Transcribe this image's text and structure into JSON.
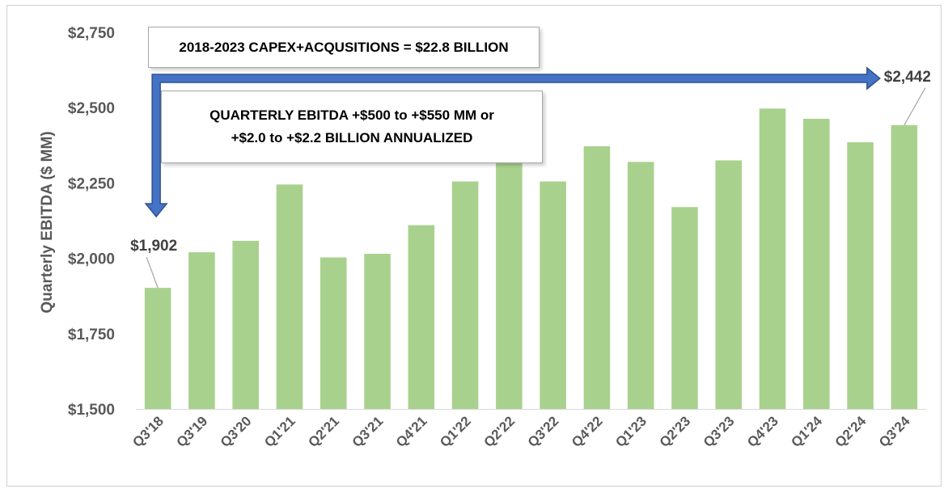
{
  "chart_data": {
    "type": "bar",
    "title": "",
    "xlabel": "",
    "ylabel": "Quarterly  EBITDA ($ MM)",
    "ylim": [
      1500,
      2750
    ],
    "yticks": [
      "$1,500",
      "$1,750",
      "$2,000",
      "$2,250",
      "$2,500",
      "$2,750"
    ],
    "ytick_values": [
      1500,
      1750,
      2000,
      2250,
      2500,
      2750
    ],
    "categories": [
      "Q3'18",
      "Q3'19",
      "Q3'20",
      "Q1'21",
      "Q2'21",
      "Q3'21",
      "Q4'21",
      "Q1'22",
      "Q2'22",
      "Q3'22",
      "Q4'22",
      "Q1'23",
      "Q2'23",
      "Q3'23",
      "Q4'23",
      "Q1'24",
      "Q2'24",
      "Q3'24"
    ],
    "values": [
      1902,
      2020,
      2058,
      2245,
      2003,
      2015,
      2110,
      2255,
      2320,
      2255,
      2372,
      2320,
      2170,
      2325,
      2497,
      2463,
      2385,
      2442
    ],
    "bar_color": "#a9d18e",
    "arrow_color": "#4472c4",
    "data_labels": [
      {
        "category": "Q3'18",
        "text": "$1,902"
      },
      {
        "category": "Q3'24",
        "text": "$2,442"
      }
    ],
    "annotations": {
      "capex": "2018-2023 CAPEX+ACQUSITIONS = $22.8 BILLION",
      "ebitda_line1": "QUARTERLY EBITDA +$500 to +$550 MM or",
      "ebitda_line2": "+$2.0 to +$2.2 BILLION ANNUALIZED"
    }
  }
}
